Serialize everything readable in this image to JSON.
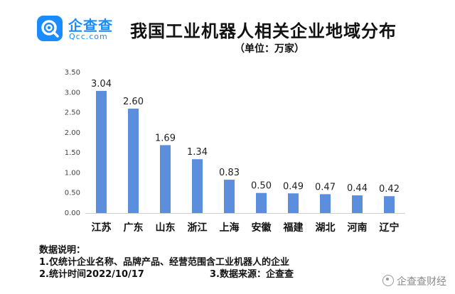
{
  "logo": {
    "name": "企查查",
    "domain": "Qcc.com"
  },
  "header": {
    "title": "我国工业机器人相关企业地域分布",
    "unit": "（单位：万家）"
  },
  "colors": {
    "bar": "#5b8fde",
    "brand": "#1a8cff",
    "axis": "#d0d0d0"
  },
  "chart_data": {
    "type": "bar",
    "title": "我国工业机器人相关企业地域分布",
    "unit": "（单位：万家）",
    "categories": [
      "江苏",
      "广东",
      "山东",
      "浙江",
      "上海",
      "安徽",
      "福建",
      "湖北",
      "河南",
      "辽宁"
    ],
    "values": [
      3.04,
      2.6,
      1.69,
      1.34,
      0.83,
      0.5,
      0.49,
      0.47,
      0.44,
      0.42
    ],
    "data_labels": [
      "3.04",
      "2.60",
      "1.69",
      "1.34",
      "0.83",
      "0.50",
      "0.49",
      "0.47",
      "0.44",
      "0.42"
    ],
    "ylim": [
      0,
      3.5
    ],
    "yticks": [
      "0.00",
      "0.50",
      "1.00",
      "1.50",
      "2.00",
      "2.50",
      "3.00",
      "3.50"
    ],
    "grid": false
  },
  "notes": {
    "heading": "数据说明：",
    "line1": "1.仅统计企业名称、品牌产品、经营范围含工业机器人的企业",
    "line2": "2.统计时间2022/10/17",
    "line3": "3.数据来源：企查查"
  },
  "watermark": {
    "text": "企查查财经",
    "icon": "wechat-channel-icon"
  }
}
